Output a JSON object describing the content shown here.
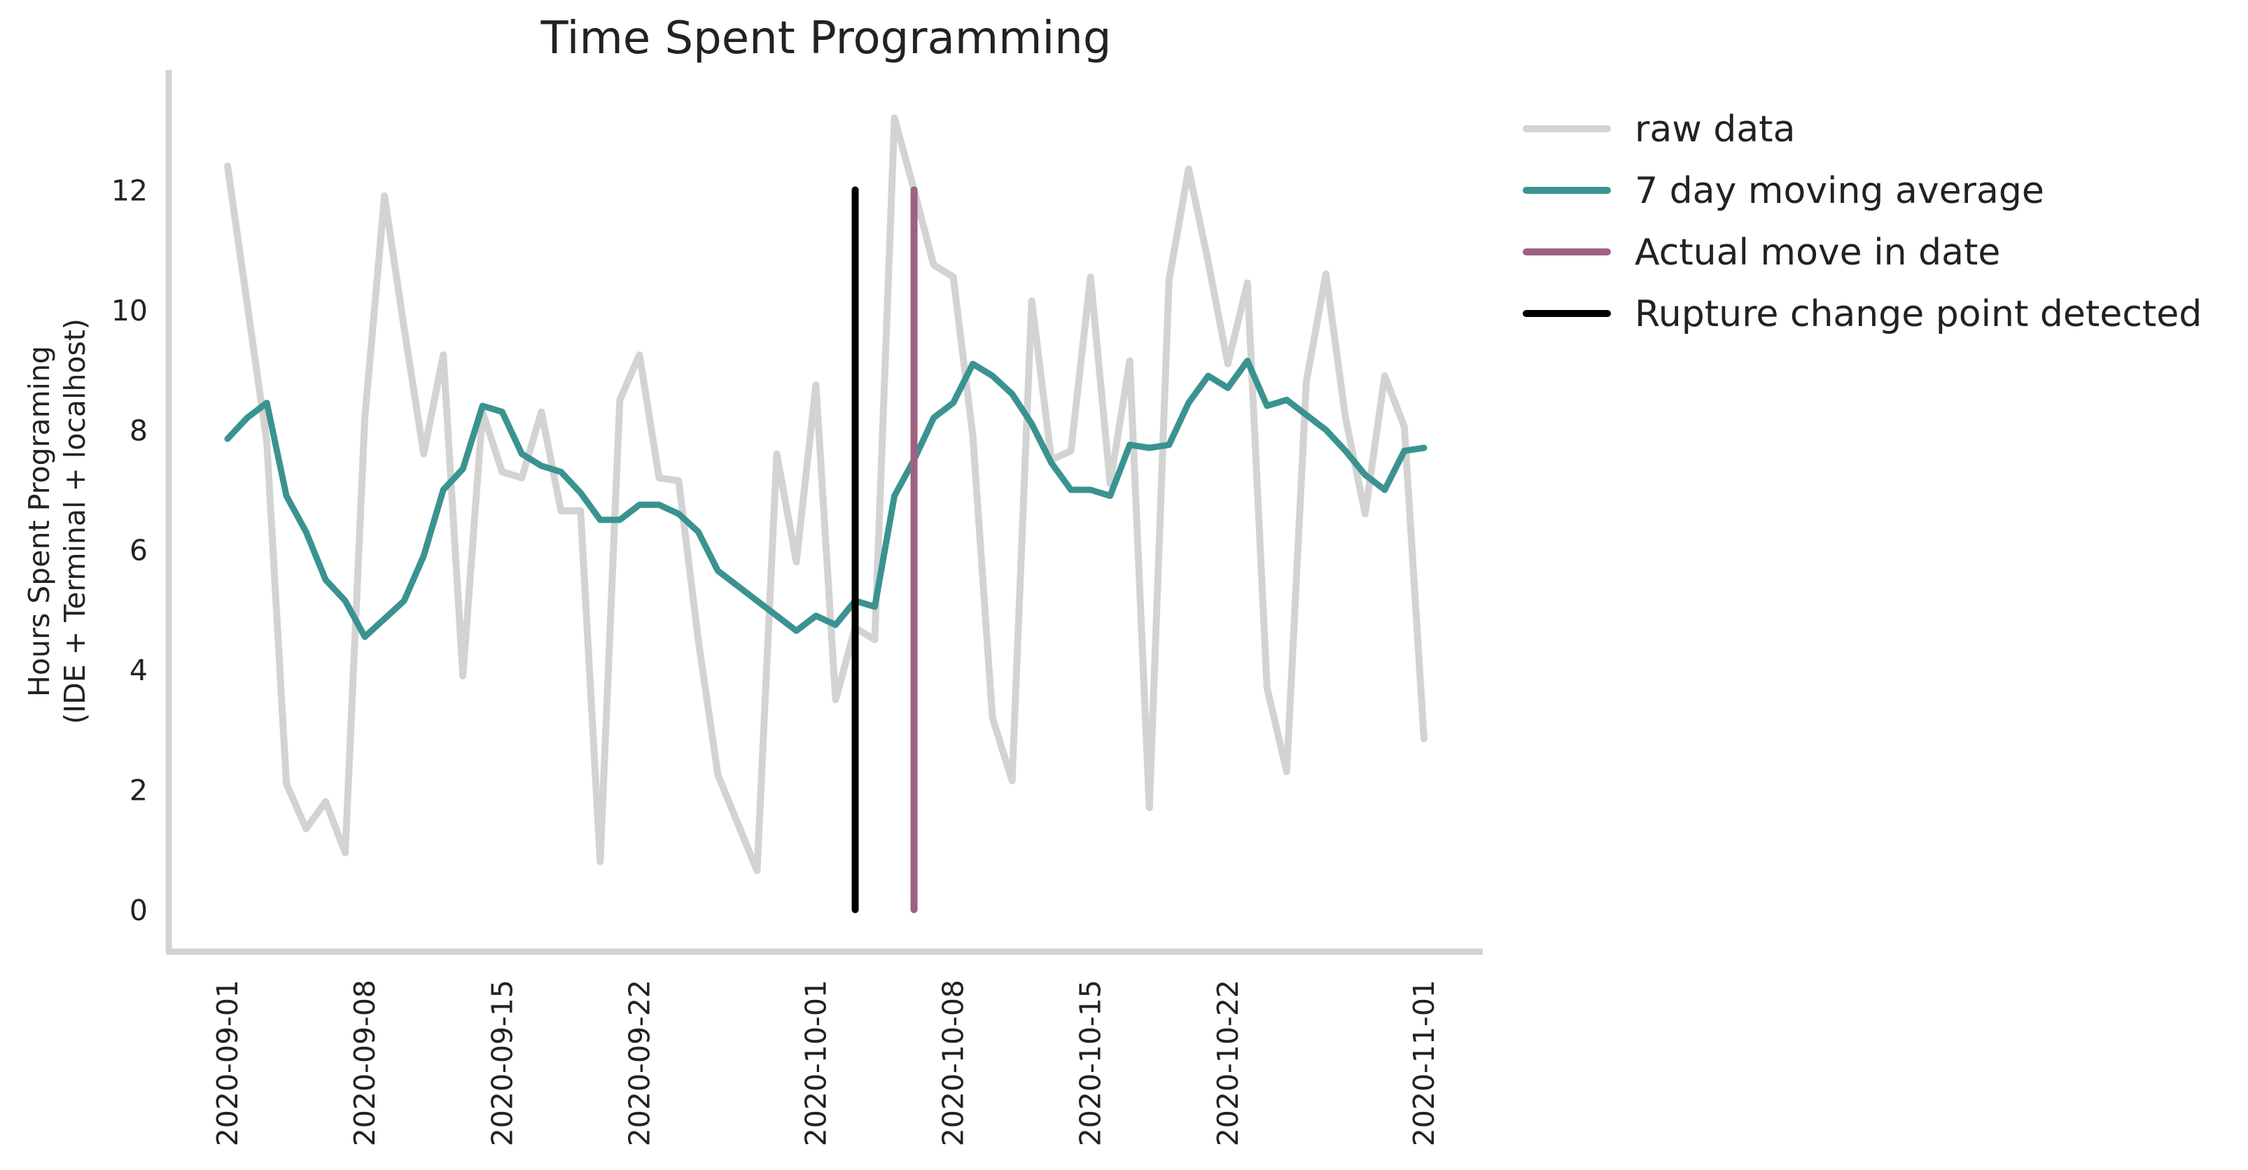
{
  "chart_data": {
    "type": "line",
    "title": "Time Spent Programming",
    "xlabel": "",
    "ylabel": [
      "Hours Spent Programing",
      "(IDE + Terminal + localhost)"
    ],
    "x_range": [
      "2020-08-29",
      "2020-11-04"
    ],
    "ylim": [
      -0.7,
      14.0
    ],
    "y_ticks": [
      0,
      2,
      4,
      6,
      8,
      10,
      12
    ],
    "x_ticks": [
      "2020-09-01",
      "2020-09-08",
      "2020-09-15",
      "2020-09-22",
      "2020-10-01",
      "2020-10-08",
      "2020-10-15",
      "2020-10-22",
      "2020-11-01"
    ],
    "grid": false,
    "legend_position": "outside-top-right",
    "series": [
      {
        "name": "raw data",
        "color": "#d3d3d3",
        "dates": [
          "2020-09-01",
          "2020-09-02",
          "2020-09-03",
          "2020-09-04",
          "2020-09-05",
          "2020-09-06",
          "2020-09-07",
          "2020-09-08",
          "2020-09-09",
          "2020-09-10",
          "2020-09-11",
          "2020-09-12",
          "2020-09-13",
          "2020-09-14",
          "2020-09-15",
          "2020-09-16",
          "2020-09-17",
          "2020-09-18",
          "2020-09-19",
          "2020-09-20",
          "2020-09-21",
          "2020-09-22",
          "2020-09-23",
          "2020-09-24",
          "2020-09-25",
          "2020-09-26",
          "2020-09-27",
          "2020-09-28",
          "2020-09-29",
          "2020-09-30",
          "2020-10-01",
          "2020-10-02",
          "2020-10-03",
          "2020-10-04",
          "2020-10-05",
          "2020-10-06",
          "2020-10-07",
          "2020-10-08",
          "2020-10-09",
          "2020-10-10",
          "2020-10-11",
          "2020-10-12",
          "2020-10-13",
          "2020-10-14",
          "2020-10-15",
          "2020-10-16",
          "2020-10-17",
          "2020-10-18",
          "2020-10-19",
          "2020-10-20",
          "2020-10-21",
          "2020-10-22",
          "2020-10-23",
          "2020-10-24",
          "2020-10-25",
          "2020-10-26",
          "2020-10-27",
          "2020-10-28",
          "2020-10-29",
          "2020-10-30",
          "2020-10-31",
          "2020-11-01"
        ],
        "values": [
          12.4,
          10.1,
          7.8,
          2.1,
          1.35,
          1.8,
          0.95,
          8.2,
          11.9,
          9.7,
          7.6,
          9.25,
          3.9,
          8.3,
          7.3,
          7.2,
          8.3,
          6.65,
          6.65,
          0.8,
          8.5,
          9.25,
          7.2,
          7.15,
          4.5,
          2.25,
          1.45,
          0.65,
          7.6,
          5.8,
          8.75,
          3.5,
          4.7,
          4.5,
          13.2,
          12.0,
          10.75,
          10.55,
          7.9,
          3.2,
          2.15,
          10.15,
          7.5,
          7.65,
          10.55,
          7.1,
          9.15,
          1.7,
          10.5,
          12.35,
          10.8,
          9.1,
          10.45,
          3.7,
          2.3,
          8.8,
          10.6,
          8.2,
          6.6,
          8.9,
          8.05,
          2.85
        ]
      },
      {
        "name": "7 day moving average",
        "color": "#3a9390",
        "dates": [
          "2020-09-01",
          "2020-09-02",
          "2020-09-03",
          "2020-09-04",
          "2020-09-05",
          "2020-09-06",
          "2020-09-07",
          "2020-09-08",
          "2020-09-09",
          "2020-09-10",
          "2020-09-11",
          "2020-09-12",
          "2020-09-13",
          "2020-09-14",
          "2020-09-15",
          "2020-09-16",
          "2020-09-17",
          "2020-09-18",
          "2020-09-19",
          "2020-09-20",
          "2020-09-21",
          "2020-09-22",
          "2020-09-23",
          "2020-09-24",
          "2020-09-25",
          "2020-09-26",
          "2020-09-27",
          "2020-09-28",
          "2020-09-29",
          "2020-09-30",
          "2020-10-01",
          "2020-10-02",
          "2020-10-03",
          "2020-10-04",
          "2020-10-05",
          "2020-10-06",
          "2020-10-07",
          "2020-10-08",
          "2020-10-09",
          "2020-10-10",
          "2020-10-11",
          "2020-10-12",
          "2020-10-13",
          "2020-10-14",
          "2020-10-15",
          "2020-10-16",
          "2020-10-17",
          "2020-10-18",
          "2020-10-19",
          "2020-10-20",
          "2020-10-21",
          "2020-10-22",
          "2020-10-23",
          "2020-10-24",
          "2020-10-25",
          "2020-10-26",
          "2020-10-27",
          "2020-10-28",
          "2020-10-29",
          "2020-10-30",
          "2020-10-31",
          "2020-11-01"
        ],
        "values": [
          7.85,
          8.2,
          8.45,
          6.9,
          6.3,
          5.5,
          5.15,
          4.55,
          4.85,
          5.15,
          5.9,
          7.0,
          7.35,
          8.4,
          8.3,
          7.6,
          7.4,
          7.3,
          6.95,
          6.5,
          6.5,
          6.75,
          6.75,
          6.6,
          6.3,
          5.65,
          5.4,
          5.15,
          4.9,
          4.65,
          4.9,
          4.75,
          5.15,
          5.05,
          6.9,
          7.5,
          8.2,
          8.45,
          9.1,
          8.9,
          8.6,
          8.1,
          7.45,
          7.0,
          7.0,
          6.9,
          7.75,
          7.7,
          7.75,
          8.45,
          8.9,
          8.7,
          9.15,
          8.4,
          8.5,
          8.25,
          8.0,
          7.65,
          7.25,
          7.0,
          7.65,
          7.7
        ]
      }
    ],
    "vlines": [
      {
        "name": "Rupture change point detected",
        "color": "#000000",
        "date": "2020-10-03",
        "ymin": 0,
        "ymax": 12
      },
      {
        "name": "Actual move in date",
        "color": "#a06082",
        "date": "2020-10-06",
        "ymin": 0,
        "ymax": 12
      }
    ],
    "legend_entries": [
      {
        "label": "raw data",
        "color": "#d3d3d3"
      },
      {
        "label": "7 day moving average",
        "color": "#3a9390"
      },
      {
        "label": "Actual move in date",
        "color": "#a06082"
      },
      {
        "label": "Rupture change point detected",
        "color": "#000000"
      }
    ],
    "spine_color": "#d3d3d3"
  }
}
